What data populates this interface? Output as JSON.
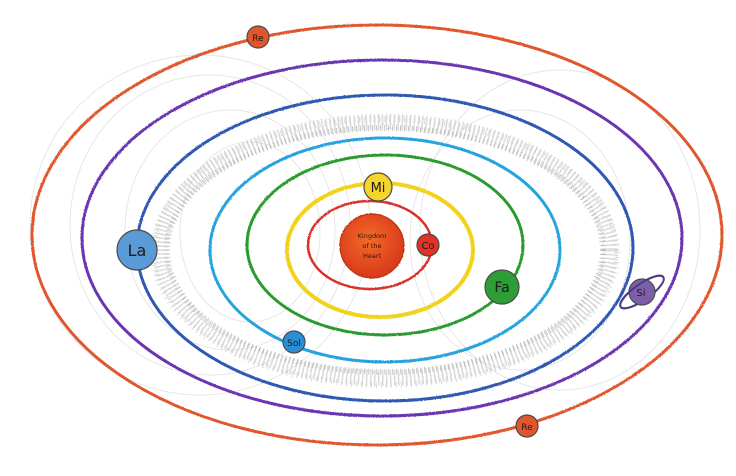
{
  "diagram": {
    "sun": {
      "lines": [
        "Kingdom",
        "of the",
        "Heart"
      ],
      "color": "#e8461c"
    },
    "orbit_colors": {
      "inner_red": "#d6312b",
      "yellow": "#f2d21a",
      "green": "#2b9a2e",
      "light_blue": "#27a3de",
      "asteroid_belt": "#bdbdbd",
      "blue": "#2f58b2",
      "purple": "#6a35b0",
      "outer_red": "#e0572d"
    },
    "planets": {
      "co": {
        "label": "Co",
        "color": "#e23126"
      },
      "mi": {
        "label": "Mi",
        "color": "#f5d52c"
      },
      "fa": {
        "label": "Fa",
        "color": "#2d9d35"
      },
      "sol": {
        "label": "Sol",
        "color": "#2a8fd6"
      },
      "la": {
        "label": "La",
        "color": "#5a9ad6"
      },
      "si": {
        "label": "Si",
        "color": "#7d5fa6",
        "has_ring": true
      },
      "re_top": {
        "label": "Re",
        "color": "#e0572d"
      },
      "re_bottom": {
        "label": "Re",
        "color": "#e0572d"
      }
    }
  }
}
